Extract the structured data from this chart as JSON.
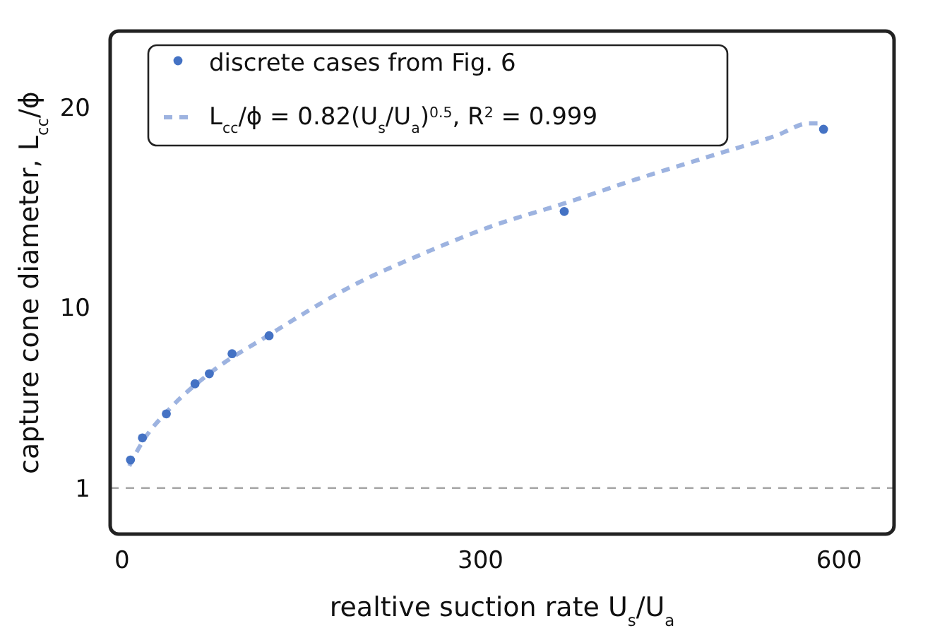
{
  "chart_data": {
    "type": "scatter",
    "xlabel": "realtive suction rate U$_{s}$/U$_{a}$",
    "ylabel": "capture cone diameter, L$_{cc}$/ϕ",
    "xlim": [
      -10,
      646
    ],
    "ylim": [
      -1.3,
      23.8
    ],
    "xticks": [
      0,
      300,
      600
    ],
    "yticks": [
      1,
      10,
      20
    ],
    "grid": false,
    "legend": "top left",
    "series": [
      {
        "name": "discrete cases from Fig. 6",
        "marker": "circle",
        "color": "#4472c4",
        "x": [
          7,
          17,
          37,
          61,
          73,
          92,
          123,
          370,
          587
        ],
        "values": [
          2.4,
          3.5,
          4.7,
          6.2,
          6.7,
          7.7,
          8.6,
          14.8,
          18.9
        ]
      },
      {
        "name": "L$_{cc}$/ϕ  = 0.82(U$_{s}$/U$_{a}$)$^{0.5}$,  R$^{2}$ = 0.999",
        "type": "line",
        "line_style": "dashed",
        "color": "#9db3e0",
        "x": [
          6,
          17,
          39,
          75,
          122,
          193,
          252,
          311,
          370,
          430,
          489,
          548,
          575,
          587
        ],
        "values": [
          2.1,
          3.3,
          4.9,
          6.8,
          8.6,
          11.1,
          12.7,
          14.1,
          15.2,
          16.4,
          17.5,
          18.6,
          19.2,
          19.2
        ]
      }
    ],
    "ref_lines": [
      {
        "axis": "y",
        "value": 1,
        "color": "#a6a6a6",
        "line_style": "dashed"
      }
    ]
  }
}
